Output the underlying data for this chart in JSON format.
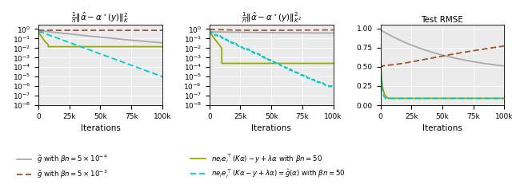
{
  "n_iter": 100000,
  "n_points": 1000,
  "title1": "$\\frac{1}{n}\\|\\hat{\\alpha} - \\alpha^\\star(y)\\|_K^2$",
  "title2": "$\\frac{1}{n}\\|\\hat{\\alpha} - \\alpha^\\star(y)\\|_{K^2}^2$",
  "title3": "Test RMSE",
  "xlabel": "Iterations",
  "xticks": [
    0,
    25000,
    50000,
    75000,
    100000
  ],
  "xticklabels": [
    "0",
    "25k",
    "50k",
    "75k",
    "100k"
  ],
  "colors": {
    "gray": "#aaaaaa",
    "brown": "#a0522d",
    "olive": "#9aaa00",
    "cyan": "#00cccc"
  },
  "ylim_log": [
    1e-08,
    3
  ],
  "ylim_lin": [
    0.0,
    1.05
  ],
  "yticks_lin": [
    0.0,
    0.25,
    0.5,
    0.75,
    1.0
  ],
  "legend": [
    {
      "label": "$\\tilde{g}$ with $\\beta n = 5 \\times 10^{-4}$",
      "color": "#aaaaaa",
      "ls": "-"
    },
    {
      "label": "$\\tilde{g}$ with $\\beta n = 5 \\times 10^{-3}$",
      "color": "#a0522d",
      "ls": "--"
    },
    {
      "label": "$n e_i e_i^\\top(K\\alpha) - y + \\lambda\\alpha$ with $\\beta n = 50$",
      "color": "#9aaa00",
      "ls": "-"
    },
    {
      "label": "$n e_i e_i^\\top(K\\alpha - y + \\lambda\\alpha) = \\hat{g}(\\alpha)$ with $\\beta n = 50$",
      "color": "#00cccc",
      "ls": "--"
    }
  ],
  "bg_color": "#ebebeb"
}
